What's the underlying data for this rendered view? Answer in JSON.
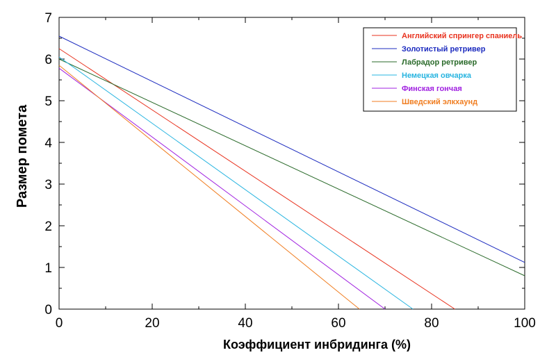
{
  "chart_data": {
    "type": "line",
    "title": "",
    "xlabel": "Коэффициент инбридинга (%)",
    "ylabel": "Размер помета",
    "xlim": [
      0,
      100
    ],
    "ylim": [
      0,
      7
    ],
    "x_ticks": [
      "0",
      "20",
      "40",
      "60",
      "80",
      "100"
    ],
    "y_ticks": [
      "0",
      "1",
      "2",
      "3",
      "4",
      "5",
      "6",
      "7"
    ],
    "grid": false,
    "legend_position": "top-right",
    "series": [
      {
        "name": "Английский спрингер спаниель",
        "color": "#e8321e",
        "x": [
          0,
          85
        ],
        "y": [
          6.25,
          0
        ]
      },
      {
        "name": "Золотистый ретривер",
        "color": "#1c2bbf",
        "x": [
          0,
          100
        ],
        "y": [
          6.55,
          1.12
        ]
      },
      {
        "name": "Лабрадор ретривер",
        "color": "#2a6a2a",
        "x": [
          0,
          100
        ],
        "y": [
          6.0,
          0.8
        ]
      },
      {
        "name": "Немецкая овчарка",
        "color": "#27b4e0",
        "x": [
          0,
          76
        ],
        "y": [
          6.05,
          0
        ]
      },
      {
        "name": "Финская гончая",
        "color": "#a020e0",
        "x": [
          0,
          70
        ],
        "y": [
          5.78,
          0
        ]
      },
      {
        "name": "Шведский элкхаунд",
        "color": "#f07d20",
        "x": [
          0,
          64.5
        ],
        "y": [
          5.85,
          0
        ]
      }
    ]
  }
}
